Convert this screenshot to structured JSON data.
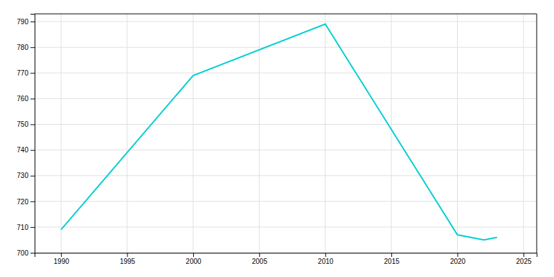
{
  "chart_data": {
    "type": "line",
    "x": [
      1990,
      2000,
      2010,
      2020,
      2022,
      2023
    ],
    "values": [
      709,
      769,
      789,
      707,
      705,
      706
    ],
    "color": "#00CED1",
    "xlim": [
      1988,
      2026
    ],
    "ylim": [
      700,
      793
    ],
    "xticks": [
      1990,
      1995,
      2000,
      2005,
      2010,
      2015,
      2020,
      2025
    ],
    "yticks": [
      700,
      710,
      720,
      730,
      740,
      750,
      760,
      770,
      780,
      790
    ],
    "grid": true
  }
}
